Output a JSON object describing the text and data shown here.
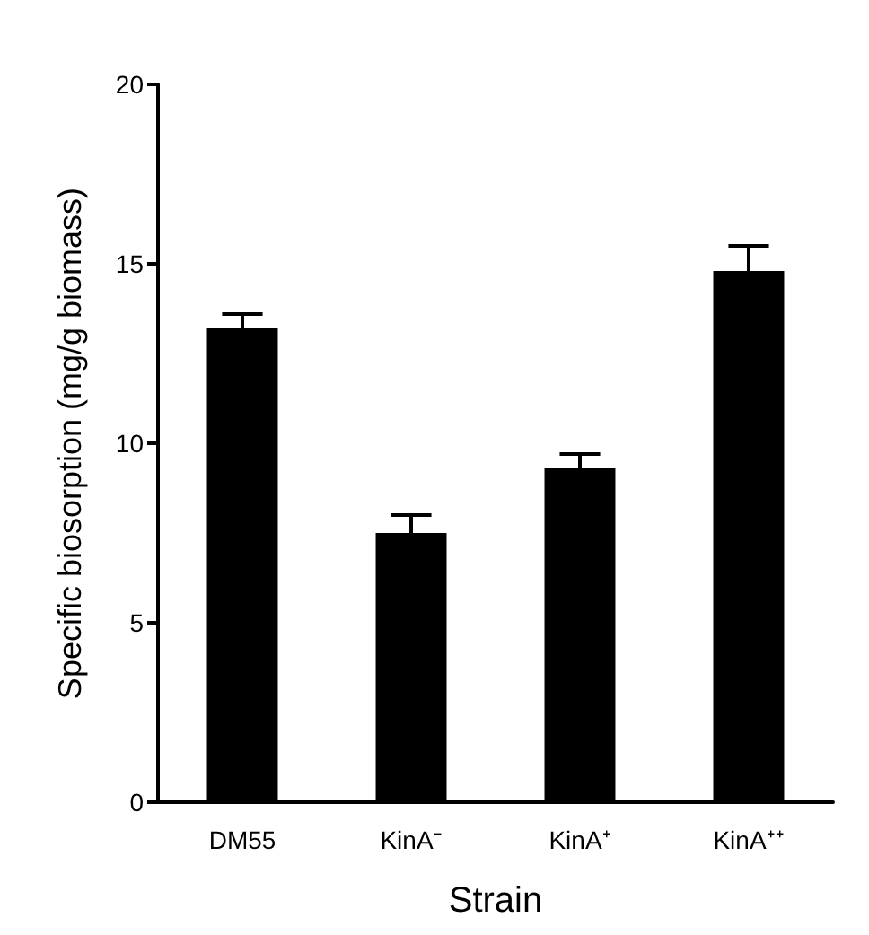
{
  "chart_data": {
    "type": "bar",
    "xlabel": "Strain",
    "ylabel": "Specific biosorption (mg/g biomass)",
    "categories": [
      "DM55",
      "KinA⁻",
      "KinA⁺",
      "KinA⁺⁺"
    ],
    "values": [
      13.2,
      7.5,
      9.3,
      14.8
    ],
    "color": "#000000",
    "errors": [
      [
        13.2,
        13.6
      ],
      [
        7.5,
        8.0
      ],
      [
        9.3,
        9.7
      ],
      [
        14.8,
        15.5
      ]
    ],
    "ylim": [
      0,
      20
    ],
    "yticks": [
      0,
      5,
      10,
      15,
      20
    ]
  }
}
